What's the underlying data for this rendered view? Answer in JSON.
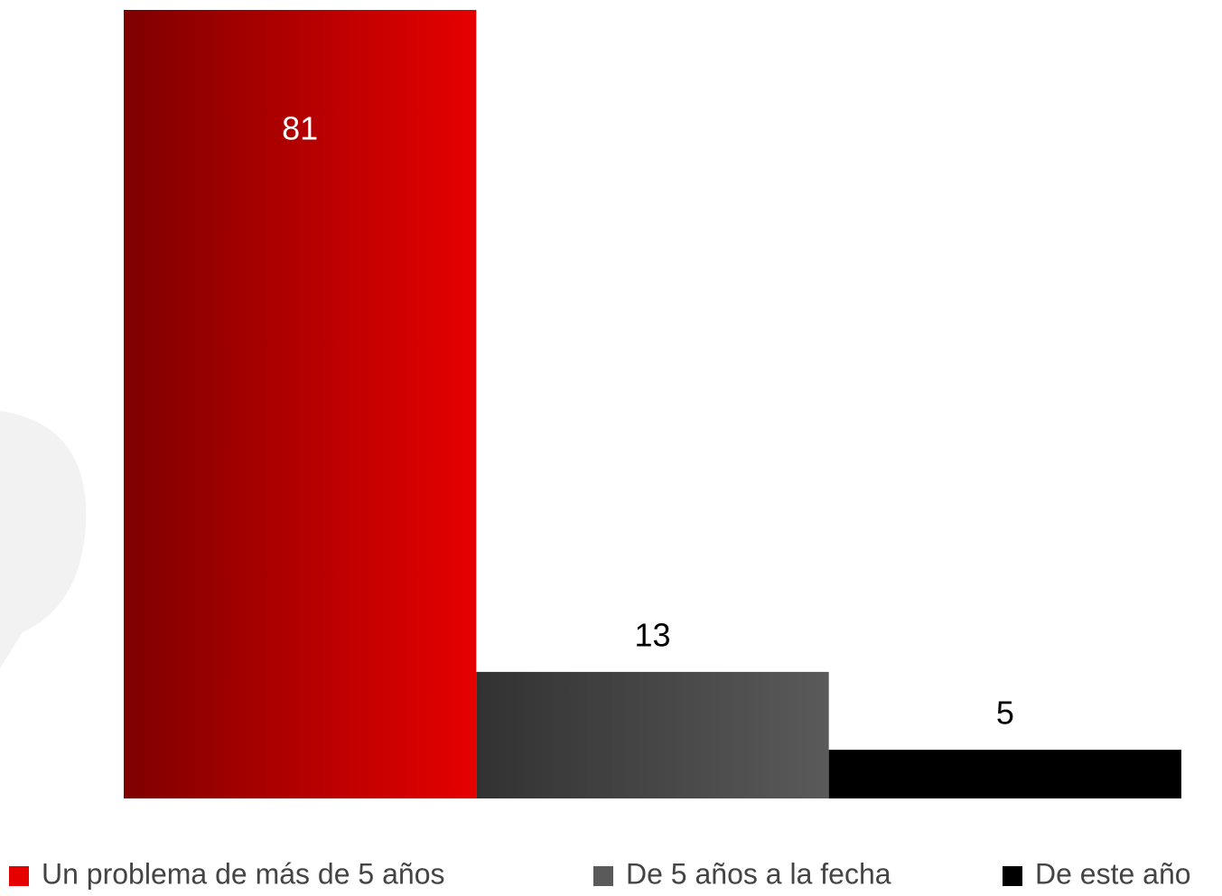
{
  "chart_data": {
    "type": "bar",
    "series": [
      {
        "name": "Un problema de más de 5 años",
        "color": "#e60000",
        "values": [
          81
        ]
      },
      {
        "name": "De 5 años a la fecha",
        "color": "#5a5a5a",
        "values": [
          13
        ]
      },
      {
        "name": "De este año",
        "color": "#000000",
        "values": [
          5
        ]
      }
    ],
    "ylim": [
      0,
      81
    ],
    "legend": "bottom"
  }
}
